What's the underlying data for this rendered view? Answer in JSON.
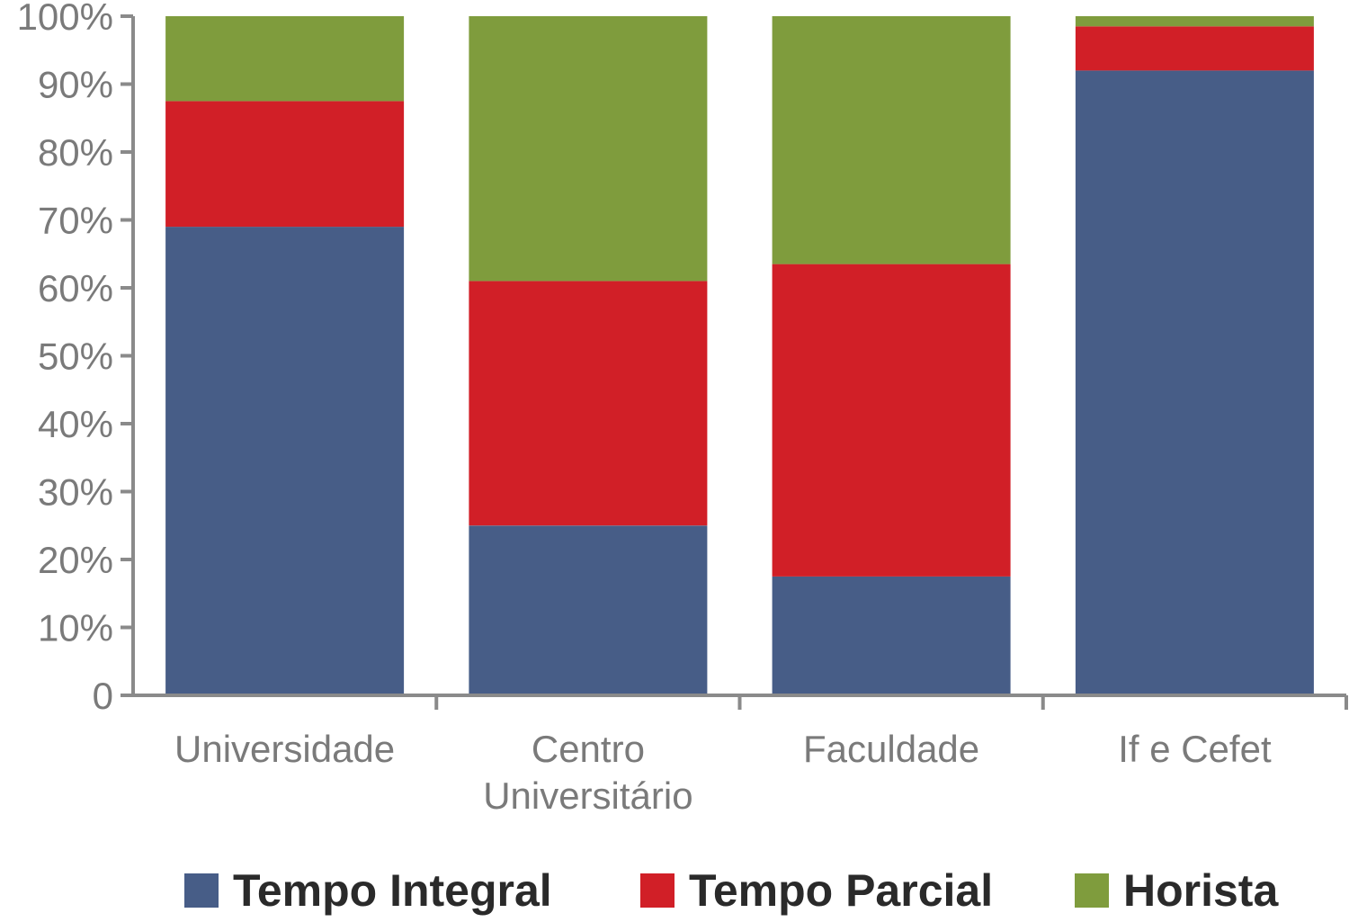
{
  "chart_data": {
    "type": "bar",
    "stacked": true,
    "categories": [
      "Universidade",
      "Centro Universitário",
      "Faculdade",
      "If e Cefet"
    ],
    "category_lines": [
      [
        "Universidade"
      ],
      [
        "Centro",
        "Universitário"
      ],
      [
        "Faculdade"
      ],
      [
        "If e Cefet"
      ]
    ],
    "series": [
      {
        "name": "Tempo Integral",
        "color": "#475d87",
        "values": [
          69,
          25,
          17.5,
          92
        ]
      },
      {
        "name": "Tempo Parcial",
        "color": "#d11f27",
        "values": [
          18.5,
          36,
          46,
          6.5
        ]
      },
      {
        "name": "Horista",
        "color": "#7f9c3d",
        "values": [
          12.5,
          39,
          36.5,
          1.5
        ]
      }
    ],
    "y_ticks": [
      "0",
      "10%",
      "20%",
      "30%",
      "40%",
      "50%",
      "60%",
      "70%",
      "80%",
      "90%",
      "100%"
    ],
    "ylim": [
      0,
      100
    ],
    "xlabel": "",
    "ylabel": "",
    "legend_position": "bottom",
    "grid": false,
    "axis_color": "#8a8a8a"
  }
}
